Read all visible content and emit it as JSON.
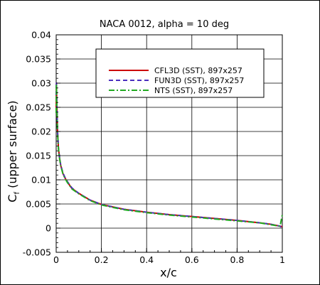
{
  "chart_data": {
    "type": "line",
    "title": "NACA 0012, alpha = 10 deg",
    "xlabel": "x/c",
    "ylabel_main": "C",
    "ylabel_sub": "f",
    "ylabel_rest": " (upper surface)",
    "xlim": [
      0,
      1
    ],
    "ylim": [
      -0.005,
      0.04
    ],
    "xticks": [
      "0",
      "0.2",
      "0.4",
      "0.6",
      "0.8",
      "1"
    ],
    "xtick_values": [
      0,
      0.2,
      0.4,
      0.6,
      0.8,
      1
    ],
    "yticks": [
      "-0.005",
      "0",
      "0.005",
      "0.01",
      "0.015",
      "0.02",
      "0.025",
      "0.03",
      "0.035",
      "0.04"
    ],
    "ytick_values": [
      -0.005,
      0,
      0.005,
      0.01,
      0.015,
      0.02,
      0.025,
      0.03,
      0.035,
      0.04
    ],
    "grid": true,
    "legend_position": "top-right",
    "series": [
      {
        "name": "CFL3D (SST), 897x257",
        "color": "#cc0000",
        "dash": "solid",
        "x": [
          0.0,
          0.001,
          0.003,
          0.006,
          0.01,
          0.015,
          0.02,
          0.03,
          0.04,
          0.05,
          0.07,
          0.1,
          0.15,
          0.2,
          0.3,
          0.4,
          0.5,
          0.6,
          0.7,
          0.8,
          0.9,
          0.95,
          0.99,
          1.0
        ],
        "y": [
          0.0245,
          0.03,
          0.0255,
          0.02,
          0.0165,
          0.0145,
          0.013,
          0.0113,
          0.0103,
          0.0095,
          0.0082,
          0.0072,
          0.0058,
          0.0049,
          0.0039,
          0.0033,
          0.0028,
          0.0024,
          0.002,
          0.0016,
          0.0011,
          0.0008,
          0.0004,
          0.0003
        ]
      },
      {
        "name": "FUN3D (SST), 897x257",
        "color": "#4b2fbf",
        "dash": "dashed",
        "x": [
          0.0,
          0.001,
          0.003,
          0.006,
          0.01,
          0.015,
          0.02,
          0.03,
          0.04,
          0.05,
          0.07,
          0.1,
          0.15,
          0.2,
          0.3,
          0.4,
          0.5,
          0.6,
          0.7,
          0.8,
          0.9,
          0.95,
          0.99,
          1.0
        ],
        "y": [
          0.0275,
          0.0303,
          0.0258,
          0.0202,
          0.0166,
          0.0146,
          0.0131,
          0.0114,
          0.0104,
          0.0096,
          0.0083,
          0.0072,
          0.0058,
          0.0049,
          0.0039,
          0.0033,
          0.0028,
          0.0024,
          0.002,
          0.0016,
          0.0011,
          0.0008,
          0.0004,
          0.0
        ]
      },
      {
        "name": "NTS (SST), 897x257",
        "color": "#22aa22",
        "dash": "dashdot",
        "x": [
          0.0,
          0.001,
          0.003,
          0.006,
          0.01,
          0.015,
          0.02,
          0.03,
          0.04,
          0.05,
          0.07,
          0.1,
          0.15,
          0.2,
          0.3,
          0.4,
          0.5,
          0.6,
          0.7,
          0.8,
          0.9,
          0.95,
          0.99,
          1.0
        ],
        "y": [
          0.0238,
          0.0298,
          0.0252,
          0.0198,
          0.0164,
          0.0144,
          0.0129,
          0.0112,
          0.0102,
          0.0094,
          0.0081,
          0.0071,
          0.0057,
          0.0048,
          0.0038,
          0.0032,
          0.0027,
          0.0023,
          0.0019,
          0.0015,
          0.0011,
          0.0007,
          0.0004,
          0.0028
        ]
      }
    ]
  }
}
